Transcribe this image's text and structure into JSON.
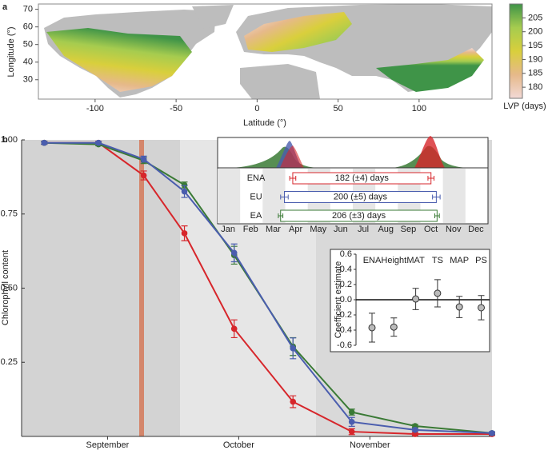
{
  "panel_labels": [
    "a",
    "b"
  ],
  "chart_data": [
    {
      "type": "map",
      "xlabel": "Latitude (°)",
      "ylabel": "Longitude (°)",
      "xlim": [
        -135,
        145
      ],
      "ylim": [
        19,
        73
      ],
      "xticks": [
        -100,
        -50,
        0,
        50,
        100
      ],
      "yticks": [
        30,
        40,
        50,
        60,
        70
      ],
      "colorbar": {
        "label": "LVP (days)",
        "lim": [
          176,
          210
        ],
        "ticks": [
          180,
          185,
          190,
          195,
          200,
          205
        ],
        "colors": [
          "#f2d9d6",
          "#e6b98a",
          "#d9cf3c",
          "#a6cc4f",
          "#3f9448"
        ]
      }
    },
    {
      "type": "line",
      "ylabel": "Chlorophyll content",
      "x": [
        5,
        17,
        27,
        36,
        47,
        60,
        73,
        87,
        104
      ],
      "xlim": [
        0,
        104
      ],
      "xticks": [
        {
          "value": 19,
          "label": "September"
        },
        {
          "value": 48,
          "label": "October"
        },
        {
          "value": 77,
          "label": "November"
        }
      ],
      "ylim": [
        0,
        1.0
      ],
      "yticks": [
        {
          "value": 0.25,
          "label": "0.25"
        },
        {
          "value": 0.5,
          "label": "0.50"
        },
        {
          "value": 0.75,
          "label": "0.75"
        },
        {
          "value": 1.0,
          "label": "1.00"
        }
      ],
      "series": [
        {
          "color": "#d7262b",
          "values": [
            0.99,
            0.99,
            0.88,
            0.685,
            0.363,
            0.117,
            0.016,
            0.008,
            0.008
          ],
          "errors": [
            0.005,
            0.005,
            0.015,
            0.025,
            0.03,
            0.02,
            0.01,
            0.005,
            0.005
          ]
        },
        {
          "color": "#3a7a35",
          "values": [
            0.99,
            0.985,
            0.93,
            0.848,
            0.611,
            0.303,
            0.082,
            0.035,
            0.011
          ],
          "errors": [
            0.005,
            0.005,
            0.01,
            0.01,
            0.03,
            0.03,
            0.01,
            0.005,
            0.005
          ]
        },
        {
          "color": "#4a5dae",
          "values": [
            0.99,
            0.99,
            0.935,
            0.826,
            0.619,
            0.297,
            0.049,
            0.022,
            0.011
          ],
          "errors": [
            0.005,
            0.005,
            0.01,
            0.02,
            0.03,
            0.035,
            0.015,
            0.005,
            0.005
          ]
        }
      ]
    },
    {
      "type": "range",
      "months": [
        "Jan",
        "Feb",
        "Mar",
        "Apr",
        "May",
        "Jun",
        "Jul",
        "Aug",
        "Sep",
        "Oct",
        "Nov",
        "Dec"
      ],
      "xlim": [
        0,
        356
      ],
      "categories": [
        "ENA",
        "EU",
        "EA"
      ],
      "colors": [
        "#d7262b",
        "#4a5dae",
        "#3a7a35"
      ],
      "starts": [
        100,
        89,
        84
      ],
      "values": [
        182,
        200,
        206
      ],
      "errors": [
        4,
        5,
        3
      ],
      "value_labels": [
        "182 (±4) days",
        "200 (±5) days",
        "206 (±3) days"
      ]
    },
    {
      "type": "errorbar",
      "ylabel": "Coefficient estimate",
      "categories": [
        "ENA",
        "Height",
        "MAT",
        "TS",
        "MAP",
        "PS"
      ],
      "category_colors": [
        "#d7262b",
        "#222",
        "#222",
        "#222",
        "#222",
        "#222"
      ],
      "values": [
        -0.368,
        -0.36,
        0.01,
        0.085,
        -0.095,
        -0.105
      ],
      "errors": [
        0.19,
        0.12,
        0.14,
        0.18,
        0.14,
        0.16
      ],
      "ylim": [
        -0.6,
        0.6
      ],
      "yticks": [
        -0.6,
        -0.4,
        -0.2,
        {
          "value": 0,
          "label": "0.0"
        },
        0.2,
        0.4,
        0.6
      ]
    }
  ]
}
